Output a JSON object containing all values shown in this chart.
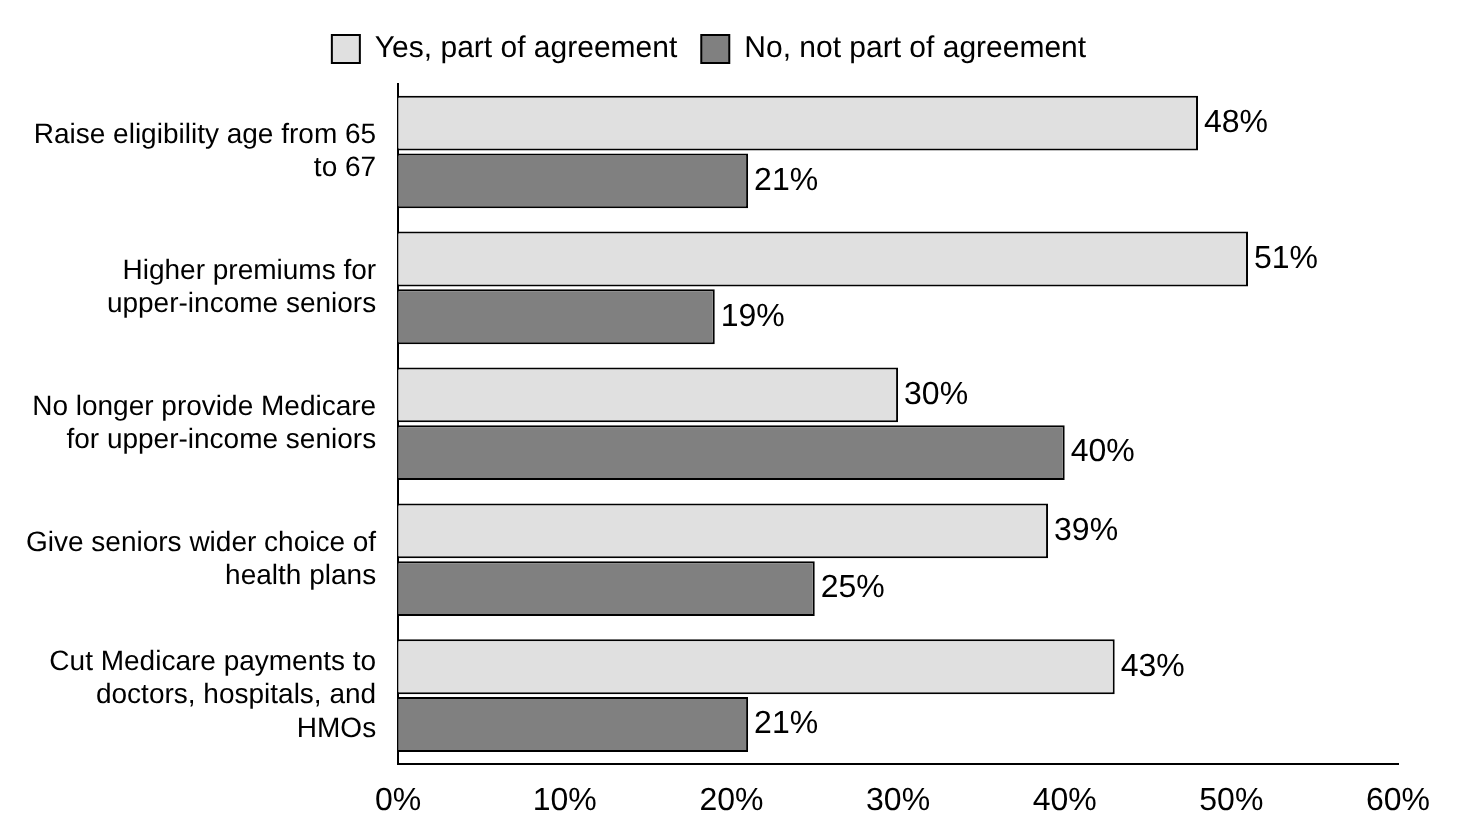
{
  "chart_data": {
    "type": "bar",
    "orientation": "horizontal",
    "categories": [
      "Raise eligibility age from 65 to 67",
      "Higher premiums for upper-income seniors",
      "No longer provide Medicare for upper-income seniors",
      "Give seniors wider choice of health plans",
      "Cut Medicare payments to doctors, hospitals, and HMOs"
    ],
    "series": [
      {
        "name": "Yes, part of agreement",
        "color": "#e0e0e0",
        "values": [
          48,
          51,
          30,
          39,
          43
        ],
        "value_labels": [
          "48%",
          "51%",
          "30%",
          "39%",
          "43%"
        ]
      },
      {
        "name": "No, not part of agreement",
        "color": "#808080",
        "values": [
          21,
          19,
          40,
          25,
          21
        ],
        "value_labels": [
          "21%",
          "19%",
          "40%",
          "25%",
          "21%"
        ]
      }
    ],
    "xlim": [
      0,
      60
    ],
    "xticks": [
      {
        "value": 0,
        "label": "0%"
      },
      {
        "value": 10,
        "label": "10%"
      },
      {
        "value": 20,
        "label": "20%"
      },
      {
        "value": 30,
        "label": "30%"
      },
      {
        "value": 40,
        "label": "40%"
      },
      {
        "value": 50,
        "label": "50%"
      },
      {
        "value": 60,
        "label": "60%"
      }
    ],
    "legend": "top",
    "grid": false
  }
}
